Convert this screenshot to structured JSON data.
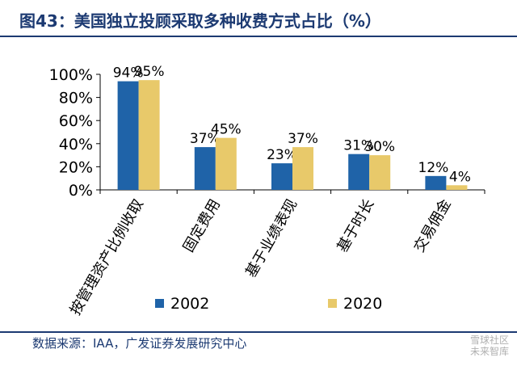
{
  "figure": {
    "title": "图43：美国独立投顾采取多种收费方式占比（%）",
    "source": "数据来源：IAA，广发证券发展研究中心",
    "watermark_line1": "雪球社区",
    "watermark_line2": "未来智库"
  },
  "chart_data": {
    "type": "bar",
    "title": "美国独立投顾采取多种收费方式占比（%）",
    "categories": [
      "按管理资产比例收取",
      "固定费用",
      "基于业绩表现",
      "基于时长",
      "交易佣金"
    ],
    "series": [
      {
        "name": "2002",
        "values": [
          94,
          37,
          23,
          31,
          12
        ],
        "labels": [
          "94%",
          "37%",
          "23%",
          "31%",
          "12%"
        ]
      },
      {
        "name": "2020",
        "values": [
          95,
          45,
          37,
          30,
          4
        ],
        "labels": [
          "95%",
          "45%",
          "37%",
          "30%",
          "4%"
        ]
      }
    ],
    "ylim": [
      0,
      100
    ],
    "yticks": [
      0,
      20,
      40,
      60,
      80,
      100
    ],
    "ytick_labels": [
      "0%",
      "20%",
      "40%",
      "60%",
      "80%",
      "100%"
    ],
    "xlabel": "",
    "ylabel": "",
    "grid": false,
    "legend_position": "bottom-center",
    "colors": {
      "2002": "#1f63a8",
      "2020": "#e8c96a",
      "axis": "#000000",
      "title": "#1c3a72"
    }
  }
}
